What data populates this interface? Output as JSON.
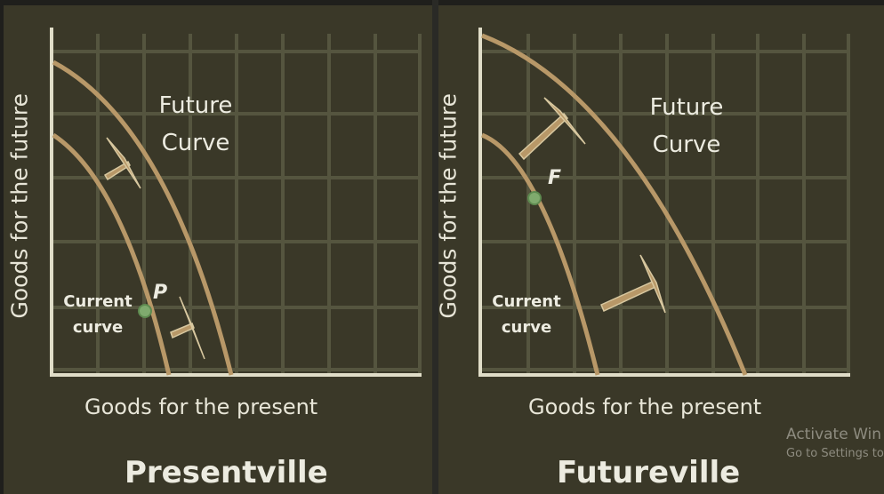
{
  "colors": {
    "panel_bg": "#3a3828",
    "grid": "#55553f",
    "axis": "#e0ddc8",
    "curve": "#b89868",
    "point": "#7faa6e"
  },
  "left_panel": {
    "title": "Presentville",
    "y_axis_label": "Goods for the future",
    "x_axis_label": "Goods for the present",
    "future_curve_label_line1": "Future",
    "future_curve_label_line2": "Curve",
    "current_curve_label_line1": "Current",
    "current_curve_label_line2": "curve",
    "point_label": "P"
  },
  "right_panel": {
    "title": "Futureville",
    "y_axis_label": "Goods for the future",
    "x_axis_label": "Goods for the present",
    "future_curve_label_line1": "Future",
    "future_curve_label_line2": "Curve",
    "current_curve_label_line1": "Current",
    "current_curve_label_line2": "curve",
    "point_label": "F"
  },
  "watermark": {
    "line1": "Activate Win",
    "line2": "Go to Settings to"
  }
}
